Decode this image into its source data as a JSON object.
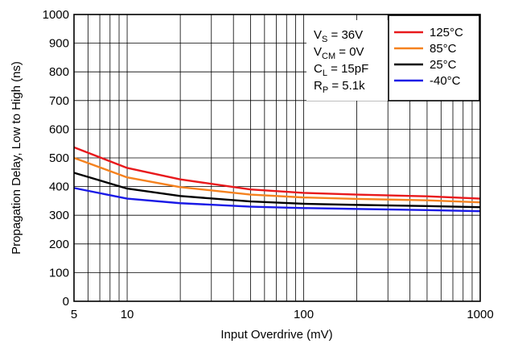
{
  "chart_data": {
    "type": "line",
    "xlabel": "Input Overdrive (mV)",
    "ylabel": "Propagation Delay, Low to High (ns)",
    "x_scale": "log",
    "xlim": [
      5,
      1000
    ],
    "ylim": [
      0,
      1000
    ],
    "x_tick_labels": [
      "5",
      "10",
      "100",
      "1000"
    ],
    "y_tick_labels": [
      "0",
      "100",
      "200",
      "300",
      "400",
      "500",
      "600",
      "700",
      "800",
      "900",
      "1000"
    ],
    "grid": true,
    "legend_position": "top-right",
    "conditions": [
      {
        "main": "V",
        "sub": "S",
        "rest": " = 36V"
      },
      {
        "main": "V",
        "sub": "CM",
        "rest": " = 0V"
      },
      {
        "main": "C",
        "sub": "L",
        "rest": " = 15pF"
      },
      {
        "main": "R",
        "sub": "P",
        "rest": " = 5.1k"
      }
    ],
    "x": [
      5,
      10,
      20,
      50,
      100,
      200,
      500,
      1000
    ],
    "series": [
      {
        "name": "125°C",
        "color": "#e8191c",
        "values": [
          537,
          465,
          425,
          390,
          378,
          372,
          366,
          358
        ]
      },
      {
        "name": "85°C",
        "color": "#f5821f",
        "values": [
          500,
          432,
          398,
          372,
          362,
          357,
          352,
          345
        ]
      },
      {
        "name": "25°C",
        "color": "#000000",
        "values": [
          448,
          393,
          367,
          348,
          340,
          336,
          332,
          328
        ]
      },
      {
        "name": "-40°C",
        "color": "#1a1ae6",
        "values": [
          395,
          358,
          342,
          330,
          325,
          322,
          318,
          314
        ]
      }
    ]
  }
}
